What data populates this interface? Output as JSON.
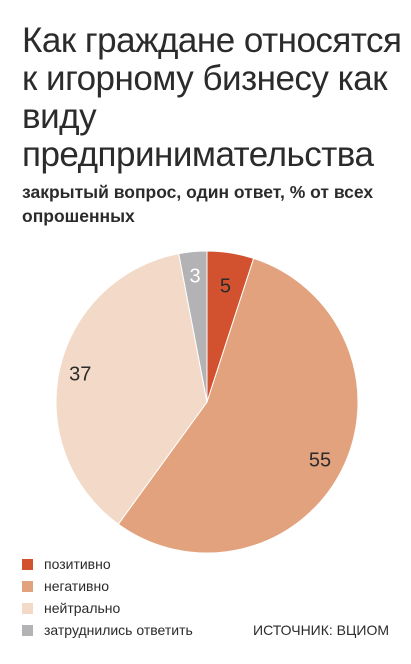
{
  "chart_data": {
    "type": "pie",
    "title": "Как граждане относятся к игорному бизнесу как виду предпринимательства",
    "subtitle": "закрытый вопрос, один ответ, % от всех опрошенных",
    "unit": "%",
    "slices": [
      {
        "label": "позитивно",
        "value": 5,
        "color": "#d2522f",
        "value_color": "#2b2b2b"
      },
      {
        "label": "негативно",
        "value": 55,
        "color": "#e3a27e",
        "value_color": "#2b2b2b"
      },
      {
        "label": "нейтрально",
        "value": 37,
        "color": "#f2d9c8",
        "value_color": "#2b2b2b"
      },
      {
        "label": "затруднились ответить",
        "value": 3,
        "color": "#b3b3b5",
        "value_color": "#ffffff"
      }
    ],
    "start_angle_deg": 0,
    "direction": "clockwise",
    "legend": "bottom-left",
    "source": "ИСТОЧНИК: ВЦИОМ"
  }
}
